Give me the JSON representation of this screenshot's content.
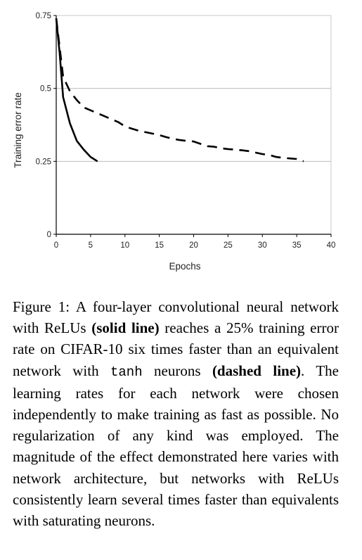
{
  "chart_data": {
    "type": "line",
    "xlabel": "Epochs",
    "ylabel": "Training error rate",
    "xlim": [
      0,
      40
    ],
    "ylim": [
      0,
      0.75
    ],
    "x_ticks": [
      "0",
      "5",
      "10",
      "15",
      "20",
      "25",
      "30",
      "35",
      "40"
    ],
    "y_ticks": [
      "0",
      "0.25",
      "0.5",
      "0.75"
    ],
    "grid": "horizontal",
    "series": [
      {
        "style": "solid",
        "x": [
          0,
          0.5,
          1,
          2,
          3,
          4,
          5,
          6
        ],
        "y": [
          0.74,
          0.62,
          0.47,
          0.38,
          0.32,
          0.29,
          0.265,
          0.25
        ]
      },
      {
        "style": "dashed",
        "x": [
          0,
          1,
          2,
          3,
          4,
          5,
          6,
          7,
          8,
          9,
          10,
          11,
          12,
          13,
          14,
          15,
          16,
          17,
          18,
          19,
          20,
          21,
          22,
          23,
          24,
          25,
          26,
          27,
          28,
          29,
          30,
          31,
          32,
          33,
          34,
          35,
          36
        ],
        "y": [
          0.74,
          0.54,
          0.49,
          0.46,
          0.435,
          0.425,
          0.415,
          0.405,
          0.395,
          0.385,
          0.37,
          0.362,
          0.355,
          0.35,
          0.345,
          0.34,
          0.333,
          0.327,
          0.323,
          0.32,
          0.318,
          0.31,
          0.302,
          0.3,
          0.295,
          0.292,
          0.29,
          0.288,
          0.285,
          0.28,
          0.275,
          0.272,
          0.265,
          0.262,
          0.26,
          0.258,
          0.25
        ]
      }
    ]
  },
  "caption": {
    "label": "Figure 1:",
    "text_1": " A four-layer convolutional neural network with ReLUs ",
    "bold_1": "(solid line)",
    "text_2": " reaches a 25% training error rate on CIFAR-10 six times faster than an equivalent network with ",
    "mono": "tanh",
    "text_3": " neurons ",
    "bold_2": "(dashed line)",
    "text_4": ". The learning rates for each network were chosen independently to make training as fast as possible. No regularization of any kind was employed. The magnitude of the effect demonstrated here varies with network architecture, but networks with ReLUs consistently learn several times faster than equivalents with saturating neurons."
  }
}
